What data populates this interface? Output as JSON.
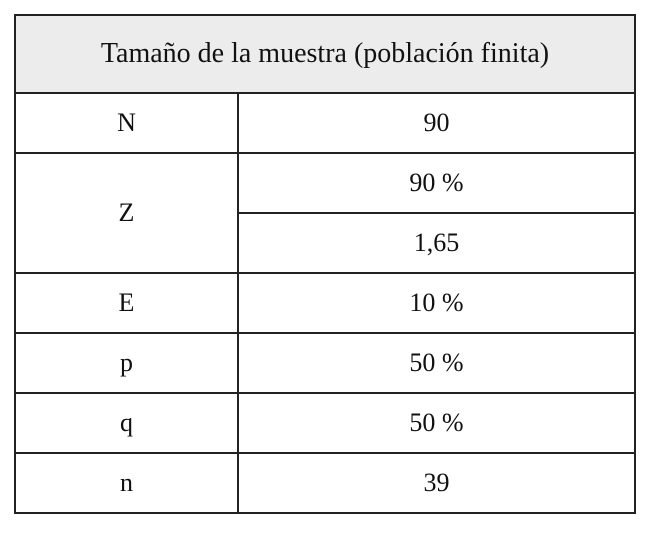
{
  "table": {
    "title": "Tamaño de la muestra (población finita)",
    "rows": [
      {
        "label": "N",
        "values": [
          "90"
        ]
      },
      {
        "label": "Z",
        "values": [
          "90 %",
          "1,65"
        ]
      },
      {
        "label": "E",
        "values": [
          "10 %"
        ]
      },
      {
        "label": "p",
        "values": [
          "50 %"
        ]
      },
      {
        "label": "q",
        "values": [
          "50 %"
        ]
      },
      {
        "label": "n",
        "values": [
          "39"
        ]
      }
    ]
  }
}
